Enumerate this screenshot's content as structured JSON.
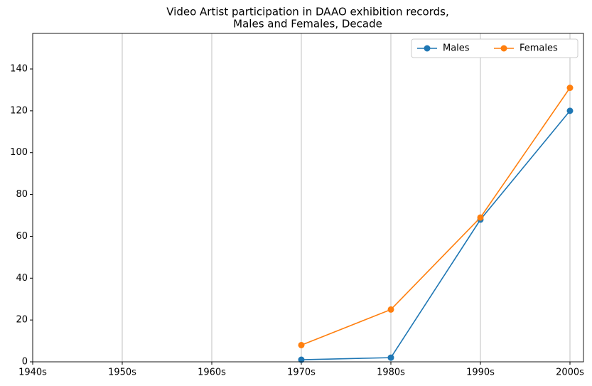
{
  "chart_data": {
    "type": "line",
    "title": [
      "Video Artist participation in DAAO exhibition records,",
      "Males and Females, Decade"
    ],
    "categories": [
      "1940s",
      "1950s",
      "1960s",
      "1970s",
      "1980s",
      "1990s",
      "2000s"
    ],
    "series": [
      {
        "name": "Males",
        "color": "#1f77b4",
        "values": [
          null,
          null,
          null,
          1,
          2,
          68,
          120
        ]
      },
      {
        "name": "Females",
        "color": "#ff7f0e",
        "values": [
          null,
          null,
          null,
          8,
          25,
          69,
          131
        ]
      }
    ],
    "ylim": [
      0,
      157
    ],
    "yticks": [
      0,
      20,
      40,
      60,
      80,
      100,
      120,
      140
    ],
    "grid": "x",
    "legend": "upper right"
  }
}
